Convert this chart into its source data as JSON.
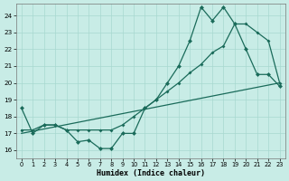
{
  "xlabel": "Humidex (Indice chaleur)",
  "xlim": [
    -0.5,
    23.5
  ],
  "ylim": [
    15.5,
    24.7
  ],
  "yticks": [
    16,
    17,
    18,
    19,
    20,
    21,
    22,
    23,
    24
  ],
  "xticks": [
    0,
    1,
    2,
    3,
    4,
    5,
    6,
    7,
    8,
    9,
    10,
    11,
    12,
    13,
    14,
    15,
    16,
    17,
    18,
    19,
    20,
    21,
    22,
    23
  ],
  "background_color": "#c8ece6",
  "grid_color": "#a8d8d0",
  "line_color": "#1a6b5a",
  "line1_x": [
    0,
    1,
    2,
    3,
    4,
    5,
    6,
    7,
    8,
    9,
    10,
    11,
    12,
    13,
    14,
    15,
    16,
    17,
    18,
    19,
    20,
    21,
    22,
    23
  ],
  "line1_y": [
    18.5,
    17.0,
    17.5,
    17.5,
    17.2,
    16.5,
    16.6,
    16.1,
    16.1,
    17.0,
    17.0,
    18.5,
    19.0,
    20.0,
    21.0,
    22.5,
    24.5,
    23.7,
    24.5,
    23.5,
    22.0,
    20.5,
    20.5,
    19.8
  ],
  "line2_x": [
    0,
    23
  ],
  "line2_y": [
    17.0,
    20.0
  ],
  "line3_x": [
    0,
    1,
    2,
    3,
    4,
    5,
    6,
    7,
    8,
    9,
    10,
    11,
    12,
    13,
    14,
    15,
    16,
    17,
    18,
    19,
    20,
    21,
    22,
    23
  ],
  "line3_y": [
    17.2,
    17.2,
    17.5,
    17.5,
    17.2,
    17.2,
    17.2,
    17.2,
    17.2,
    17.5,
    18.0,
    18.5,
    19.0,
    19.5,
    20.0,
    20.6,
    21.1,
    21.8,
    22.2,
    23.5,
    23.5,
    23.0,
    22.5,
    20.0
  ]
}
